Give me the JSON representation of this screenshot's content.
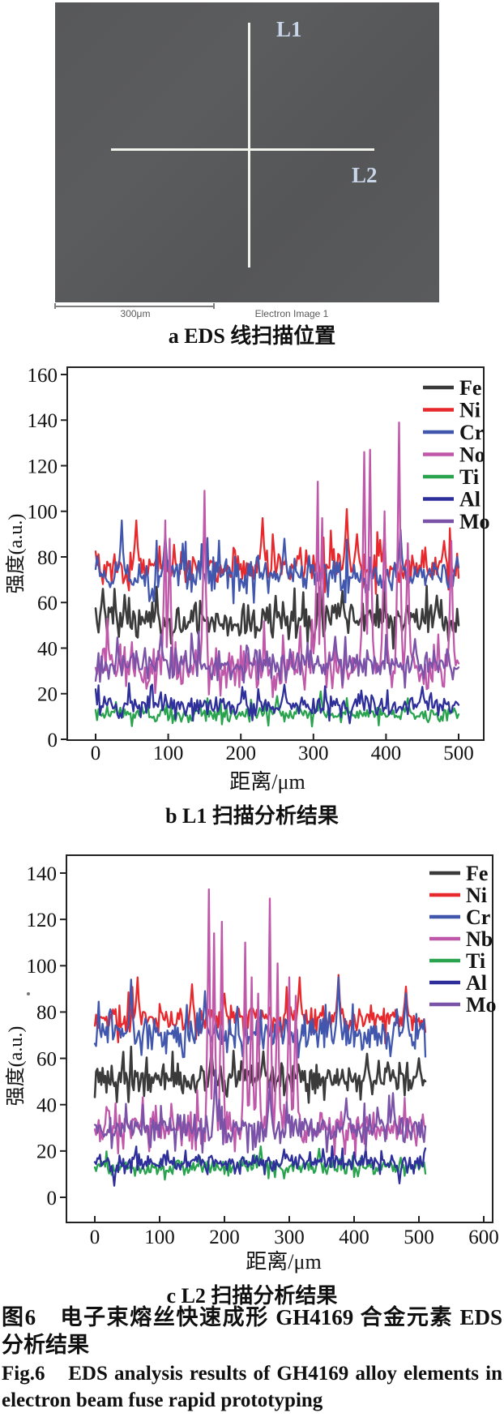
{
  "sem_panel": {
    "label_l1": "L1",
    "label_l2": "L2",
    "scale_text": "300μm",
    "detector_text": "Electron Image 1"
  },
  "captions": {
    "panel_a": "a EDS 线扫描位置",
    "figure_zh": "图6　电子束熔丝快速成形 GH4169 合金元素 EDS 分析结果",
    "figure_en": "Fig.6　EDS analysis results of GH4169 alloy elements in electron beam fuse rapid prototyping"
  },
  "chart_data": [
    {
      "type": "line",
      "panel": "b",
      "title": "b L1 扫描分析结果",
      "xlabel": "距离/μm",
      "ylabel": "强度(a.u.)",
      "x_ticks": [
        0,
        100,
        200,
        300,
        400,
        500
      ],
      "y_ticks": [
        0,
        20,
        40,
        60,
        80,
        100,
        120,
        140,
        160
      ],
      "xlim": [
        -39,
        535
      ],
      "ylim": [
        0,
        163
      ],
      "x_range": [
        0,
        500
      ],
      "step": 2,
      "grid": false,
      "legend_position": "top-right",
      "series": [
        {
          "name": "Fe",
          "color": "#3a3a3a",
          "mean": 52,
          "noise": 7,
          "spikes": [
            [
              10,
              66
            ],
            [
              300,
              40
            ],
            [
              340,
              65
            ],
            [
              470,
              63
            ]
          ]
        },
        {
          "name": "Ni",
          "color": "#e7292d",
          "mean": 76,
          "noise": 7,
          "spikes": [
            [
              55,
              96
            ],
            [
              150,
              92
            ],
            [
              230,
              97
            ],
            [
              345,
              101
            ],
            [
              360,
              90
            ],
            [
              480,
              87
            ]
          ]
        },
        {
          "name": "Cr",
          "color": "#4156ad",
          "mean": 72,
          "noise": 7,
          "spikes": [
            [
              35,
              96
            ],
            [
              95,
              90
            ],
            [
              260,
              88
            ],
            [
              420,
              92
            ],
            [
              498,
              80
            ]
          ]
        },
        {
          "name": "No",
          "color": "#c058aa",
          "mean": 32,
          "noise": 9,
          "spikes": [
            [
              95,
              96
            ],
            [
              101,
              88
            ],
            [
              150,
              109
            ],
            [
              305,
              113
            ],
            [
              312,
              97
            ],
            [
              370,
              126
            ],
            [
              378,
              127
            ],
            [
              398,
              100
            ],
            [
              418,
              139
            ],
            [
              430,
              86
            ],
            [
              490,
              87
            ]
          ]
        },
        {
          "name": "Ti",
          "color": "#2aa34f",
          "mean": 11,
          "noise": 3,
          "spikes": [
            [
              250,
              19
            ],
            [
              310,
              21
            ],
            [
              430,
              18
            ]
          ]
        },
        {
          "name": "Al",
          "color": "#2e2f9b",
          "mean": 15,
          "noise": 4,
          "spikes": [
            [
              260,
              24
            ],
            [
              350,
              7
            ],
            [
              450,
              23
            ]
          ]
        },
        {
          "name": "Mo",
          "color": "#7a52a8",
          "mean": 33,
          "noise": 6,
          "spikes": [
            [
              90,
              46
            ],
            [
              330,
              45
            ],
            [
              440,
              44
            ]
          ]
        }
      ]
    },
    {
      "type": "line",
      "panel": "c",
      "title": "c L2 扫描分析结果",
      "xlabel": "距离/μm",
      "ylabel": "强度(a.u.)",
      "x_ticks": [
        0,
        100,
        200,
        300,
        400,
        500,
        600
      ],
      "y_ticks": [
        0,
        20,
        40,
        60,
        80,
        100,
        120,
        140
      ],
      "xlim": [
        -44,
        614
      ],
      "ylim": [
        -11,
        148
      ],
      "x_range": [
        0,
        510
      ],
      "step": 2,
      "grid": false,
      "legend_position": "top-right",
      "series": [
        {
          "name": "Fe",
          "color": "#3a3a3a",
          "mean": 51,
          "noise": 6,
          "spikes": [
            [
              180,
              64
            ],
            [
              260,
              63
            ],
            [
              420,
              62
            ],
            [
              500,
              60
            ]
          ]
        },
        {
          "name": "Ni",
          "color": "#e7292d",
          "mean": 77,
          "noise": 6,
          "spikes": [
            [
              65,
              95
            ],
            [
              150,
              92
            ],
            [
              200,
              88
            ],
            [
              315,
              95
            ],
            [
              375,
              96
            ],
            [
              480,
              91
            ]
          ]
        },
        {
          "name": "Cr",
          "color": "#4156ad",
          "mean": 71,
          "noise": 6,
          "spikes": [
            [
              55,
              94
            ],
            [
              170,
              89
            ],
            [
              375,
              95
            ],
            [
              480,
              88
            ]
          ]
        },
        {
          "name": "Nb",
          "color": "#c058aa",
          "mean": 30,
          "noise": 7,
          "spikes": [
            [
              175,
              133
            ],
            [
              184,
              114
            ],
            [
              196,
              119
            ],
            [
              232,
              110
            ],
            [
              242,
              95
            ],
            [
              252,
              88
            ],
            [
              270,
              129
            ],
            [
              281,
              101
            ],
            [
              300,
              95
            ],
            [
              309,
              87
            ]
          ]
        },
        {
          "name": "Ti",
          "color": "#2aa34f",
          "mean": 13,
          "noise": 3,
          "spikes": [
            [
              255,
              22
            ],
            [
              345,
              21
            ]
          ]
        },
        {
          "name": "Al",
          "color": "#2e2f9b",
          "mean": 15,
          "noise": 3,
          "spikes": [
            [
              30,
              5
            ],
            [
              470,
              6
            ]
          ]
        },
        {
          "name": "Mo",
          "color": "#7a52a8",
          "mean": 30,
          "noise": 6,
          "spikes": [
            [
              185,
              55
            ],
            [
              270,
              50
            ],
            [
              460,
              45
            ]
          ]
        }
      ]
    }
  ]
}
